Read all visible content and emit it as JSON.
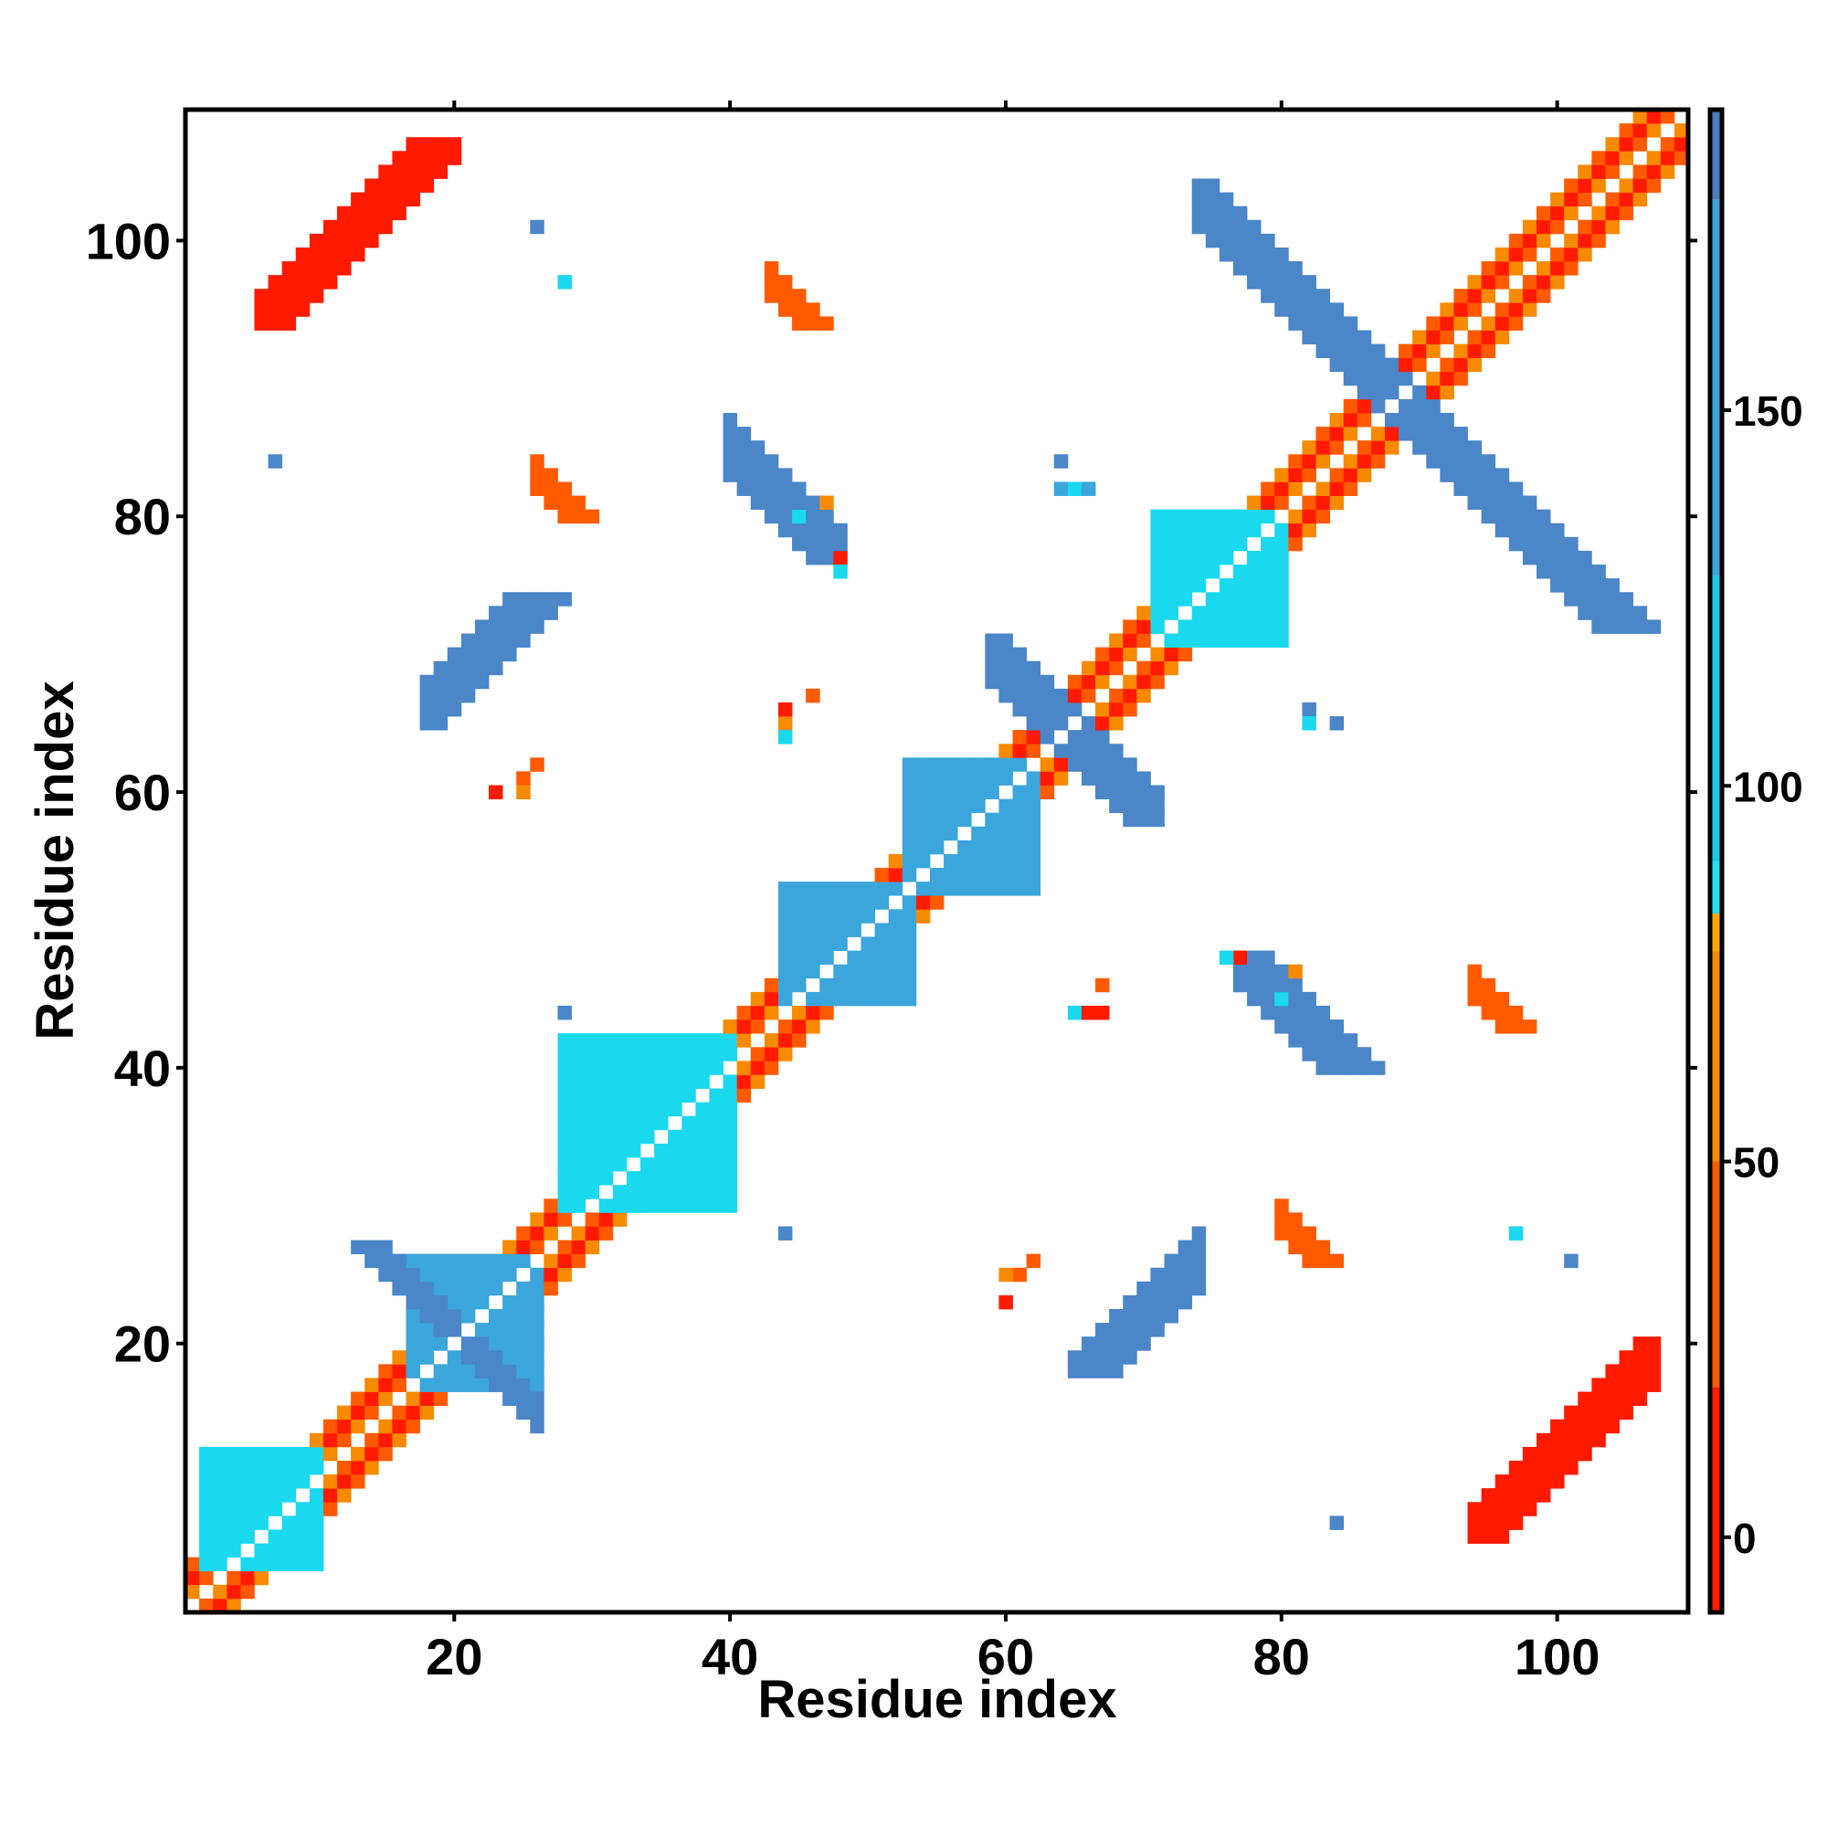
{
  "chart_data": {
    "type": "heatmap",
    "title": "",
    "xlabel": "Residue index",
    "ylabel": "Residue index",
    "xlim": [
      0.5,
      109.5
    ],
    "ylim": [
      0.5,
      109.5
    ],
    "x_ticks": [
      20,
      40,
      60,
      80,
      100
    ],
    "y_ticks": [
      20,
      40,
      60,
      80,
      100
    ],
    "x_tick_labels": [
      "20",
      "40",
      "60",
      "80",
      "100"
    ],
    "y_tick_labels": [
      "20",
      "40",
      "60",
      "80",
      "100"
    ],
    "colorbar": {
      "range": [
        -10,
        190
      ],
      "ticks": [
        0,
        50,
        100,
        150
      ],
      "tick_labels": [
        "0",
        "50",
        "100",
        "150"
      ],
      "bands": [
        {
          "from": -10,
          "to": 20,
          "color": "#ff1a00"
        },
        {
          "from": 20,
          "to": 50,
          "color": "#ff5a00"
        },
        {
          "from": 50,
          "to": 78,
          "color": "#f58a00"
        },
        {
          "from": 78,
          "to": 83,
          "color": "#ffa600"
        },
        {
          "from": 83,
          "to": 90,
          "color": "#21e0f0"
        },
        {
          "from": 90,
          "to": 128,
          "color": "#1cc7e8"
        },
        {
          "from": 128,
          "to": 178,
          "color": "#3aa6dc"
        },
        {
          "from": 178,
          "to": 190,
          "color": "#4a7fc0"
        }
      ]
    },
    "category_colors": {
      "A": "#ff1a00",
      "B": "#ff5a00",
      "C": "#f88a00",
      "D": "#1ad8ee",
      "E": "#3aa6dc",
      "F": "#4a86c8"
    },
    "category_values": {
      "A": 5,
      "B": 35,
      "C": 60,
      "D": 95,
      "E": 140,
      "F": 165
    },
    "diagonal_band": {
      "start": 1,
      "end": 109,
      "pattern": [
        "C",
        "A",
        "B",
        "B",
        "A",
        "C"
      ]
    },
    "regions": [
      {
        "x": [
          2,
          10
        ],
        "y": [
          4,
          12
        ],
        "cat": "D"
      },
      {
        "x": [
          28,
          40
        ],
        "y": [
          30,
          42
        ],
        "cat": "D"
      },
      {
        "x": [
          17,
          26
        ],
        "y": [
          17,
          26
        ],
        "cat": "E"
      },
      {
        "x": [
          13,
          26
        ],
        "y": [
          14,
          27
        ],
        "cat": "F",
        "band": "anti",
        "sum": 41,
        "width": 1
      },
      {
        "x": [
          44,
          53
        ],
        "y": [
          45,
          53
        ],
        "cat": "E"
      },
      {
        "x": [
          53,
          62
        ],
        "y": [
          53,
          62
        ],
        "cat": "E"
      },
      {
        "x": [
          59,
          71
        ],
        "y": [
          58,
          71
        ],
        "cat": "F",
        "band": "anti",
        "sum": 129,
        "width": 2
      },
      {
        "x": [
          71,
          80
        ],
        "y": [
          71,
          80
        ],
        "cat": "D"
      },
      {
        "x": [
          74,
          107
        ],
        "y": [
          72,
          104
        ],
        "cat": "F",
        "band": "anti",
        "sum": 177,
        "width": 2
      },
      {
        "x": [
          18,
          28
        ],
        "y": [
          65,
          74
        ],
        "cat": "F",
        "band": "par",
        "diff": 48,
        "width": 2
      },
      {
        "x": [
          65,
          74
        ],
        "y": [
          18,
          28
        ],
        "cat": "F",
        "band": "par",
        "diff": -48,
        "width": 2
      },
      {
        "x": [
          40,
          48
        ],
        "y": [
          77,
          87
        ],
        "cat": "F",
        "band": "anti",
        "sum": 125,
        "width": 2
      },
      {
        "x": [
          77,
          88
        ],
        "y": [
          40,
          48
        ],
        "cat": "F",
        "band": "anti",
        "sum": 125,
        "width": 2
      },
      {
        "x": [
          6,
          20
        ],
        "y": [
          94,
          107
        ],
        "cat": "A",
        "band": "par",
        "diff": 88,
        "width": 2
      },
      {
        "x": [
          94,
          107
        ],
        "y": [
          6,
          20
        ],
        "cat": "A",
        "band": "par",
        "diff": -88,
        "width": 2
      },
      {
        "x": [
          43,
          47
        ],
        "y": [
          94,
          98
        ],
        "cat": "B",
        "band": "anti",
        "sum": 140,
        "width": 1
      },
      {
        "x": [
          94,
          98
        ],
        "y": [
          43,
          47
        ],
        "cat": "B",
        "band": "anti",
        "sum": 140,
        "width": 1
      },
      {
        "x": [
          26,
          30
        ],
        "y": [
          80,
          84
        ],
        "cat": "B",
        "band": "anti",
        "sum": 109,
        "width": 1
      },
      {
        "x": [
          80,
          84
        ],
        "y": [
          26,
          30
        ],
        "cat": "B",
        "band": "anti",
        "sum": 109,
        "width": 1
      }
    ],
    "points": [
      [
        7,
        84,
        "F"
      ],
      [
        26,
        101,
        "F"
      ],
      [
        28,
        97,
        "D"
      ],
      [
        28,
        44,
        "F"
      ],
      [
        44,
        28,
        "F"
      ],
      [
        64,
        84,
        "F"
      ],
      [
        64,
        82,
        "E"
      ],
      [
        65,
        82,
        "D"
      ],
      [
        66,
        82,
        "E"
      ],
      [
        82,
        66,
        "F"
      ],
      [
        82,
        65,
        "D"
      ],
      [
        84,
        65,
        "F"
      ],
      [
        84,
        7,
        "F"
      ],
      [
        101,
        26,
        "F"
      ],
      [
        97,
        28,
        "D"
      ],
      [
        44,
        65,
        "C"
      ],
      [
        44,
        66,
        "A"
      ],
      [
        44,
        64,
        "D"
      ],
      [
        46,
        67,
        "B"
      ],
      [
        65,
        44,
        "D"
      ],
      [
        66,
        44,
        "A"
      ],
      [
        67,
        44,
        "A"
      ],
      [
        67,
        46,
        "B"
      ],
      [
        23,
        60,
        "A"
      ],
      [
        25,
        61,
        "B"
      ],
      [
        26,
        62,
        "B"
      ],
      [
        25,
        60,
        "C"
      ],
      [
        60,
        23,
        "A"
      ],
      [
        61,
        25,
        "B"
      ],
      [
        62,
        26,
        "B"
      ],
      [
        60,
        25,
        "C"
      ],
      [
        45,
        80,
        "D"
      ],
      [
        47,
        81,
        "C"
      ],
      [
        48,
        77,
        "A"
      ],
      [
        48,
        76,
        "D"
      ],
      [
        80,
        45,
        "D"
      ],
      [
        81,
        47,
        "C"
      ],
      [
        77,
        48,
        "A"
      ],
      [
        76,
        48,
        "D"
      ]
    ]
  }
}
